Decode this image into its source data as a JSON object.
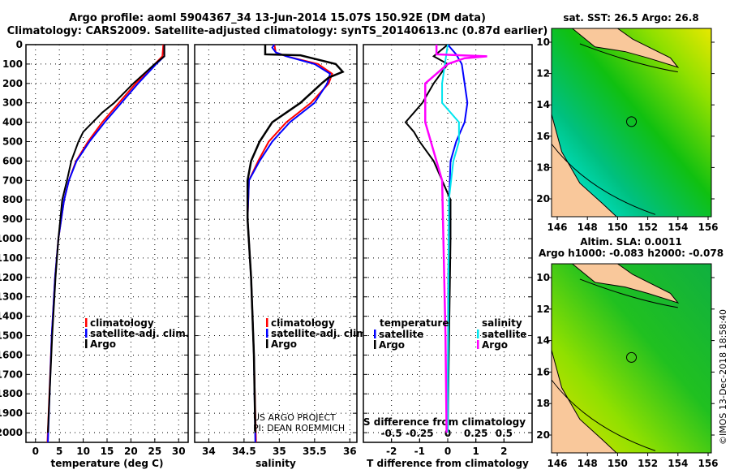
{
  "title_line1": "Argo profile: aoml 5904367_34 13-Jun-2014 15.07S 150.92E (DM data)",
  "title_line2": "Climatology: CARS2009. Satellite-adjusted climatology: synTS_20140613.nc (0.87d earlier)",
  "credit": "US ARGO PROJECT",
  "pi": "PI: DEAN ROEMMICH",
  "timestamp": "©IMOS 13-Dec-2018 18:58:40",
  "colors": {
    "climatology": "#ff0000",
    "satellite": "#0000ff",
    "argo": "#000000",
    "s_satellite": "#00e5ee",
    "s_argo": "#ff00ff"
  },
  "chart_data": [
    {
      "type": "line",
      "name": "temperature-profile",
      "xlabel": "temperature (deg C)",
      "ylabel": "",
      "xlim": [
        -2,
        32
      ],
      "ylim": [
        2050,
        0
      ],
      "xticks": [
        0,
        5,
        10,
        15,
        20,
        25,
        30
      ],
      "yticks": [
        0,
        100,
        200,
        300,
        400,
        500,
        600,
        700,
        800,
        900,
        1000,
        1100,
        1200,
        1300,
        1400,
        1500,
        1600,
        1700,
        1800,
        1900,
        2000
      ],
      "grid": true,
      "legend": {
        "placement": "bottom-center",
        "entries": [
          "climatology",
          "satellite-adj. clim.",
          "Argo"
        ]
      },
      "series": [
        {
          "name": "climatology",
          "color": "#ff0000",
          "depth": [
            0,
            60,
            100,
            200,
            300,
            400,
            500,
            600,
            700,
            800,
            1000,
            1200,
            1500,
            2050
          ],
          "values": [
            26.8,
            26.6,
            25,
            21,
            17.5,
            14,
            11,
            8.5,
            7,
            6,
            4.8,
            4.1,
            3.4,
            2.5
          ]
        },
        {
          "name": "satellite-adj. clim.",
          "color": "#0000ff",
          "depth": [
            0,
            60,
            100,
            200,
            300,
            400,
            500,
            600,
            700,
            800,
            1000,
            1200,
            1500,
            2050
          ],
          "values": [
            27,
            27,
            25.3,
            21.5,
            18,
            14.5,
            11.3,
            8.6,
            7,
            6,
            4.8,
            4.1,
            3.4,
            2.6
          ]
        },
        {
          "name": "Argo",
          "color": "#000000",
          "depth": [
            0,
            60,
            100,
            200,
            300,
            350,
            400,
            450,
            500,
            600,
            700,
            800,
            1000,
            1200,
            1500,
            2000
          ],
          "values": [
            27,
            27,
            25,
            20.5,
            16.5,
            14,
            12,
            10,
            9,
            7.5,
            6.6,
            5.6,
            4.8,
            4.2,
            3.5,
            2.6
          ]
        }
      ]
    },
    {
      "type": "line",
      "name": "salinity-profile",
      "xlabel": "salinity",
      "xlim": [
        33.8,
        36.1
      ],
      "ylim": [
        2050,
        0
      ],
      "xticks": [
        34,
        34.5,
        35,
        35.5,
        36
      ],
      "grid": true,
      "legend": {
        "placement": "bottom-center",
        "entries": [
          "climatology",
          "satellite-adj. clim.",
          "Argo"
        ]
      },
      "series": [
        {
          "name": "climatology",
          "color": "#ff0000",
          "depth": [
            0,
            40,
            60,
            100,
            150,
            200,
            300,
            400,
            500,
            600,
            700,
            900,
            1200,
            1600,
            2050
          ],
          "values": [
            34.93,
            34.95,
            35.1,
            35.55,
            35.75,
            35.7,
            35.45,
            35.1,
            34.85,
            34.7,
            34.57,
            34.55,
            34.6,
            34.64,
            34.67
          ]
        },
        {
          "name": "satellite-adj. clim.",
          "color": "#0000ff",
          "depth": [
            0,
            15,
            40,
            60,
            100,
            150,
            200,
            300,
            400,
            500,
            600,
            700,
            900,
            1200,
            1600,
            2050
          ],
          "values": [
            34.93,
            34.9,
            34.95,
            35.1,
            35.5,
            35.72,
            35.68,
            35.5,
            35.15,
            34.9,
            34.72,
            34.57,
            34.55,
            34.6,
            34.64,
            34.66
          ]
        },
        {
          "name": "Argo",
          "color": "#000000",
          "depth": [
            0,
            50,
            55,
            100,
            140,
            170,
            200,
            300,
            400,
            500,
            600,
            700,
            900,
            1200,
            1600,
            2000
          ],
          "values": [
            34.8,
            34.8,
            35.3,
            35.8,
            35.9,
            35.7,
            35.6,
            35.3,
            34.9,
            34.72,
            34.6,
            34.55,
            34.55,
            34.6,
            34.64,
            34.66
          ]
        }
      ]
    },
    {
      "type": "line",
      "name": "difference-profile",
      "xlabel": "T difference from climatology",
      "x2label": "S difference from climatology",
      "xlim": [
        -3,
        3
      ],
      "x2lim": [
        -0.75,
        0.75
      ],
      "ylim": [
        2050,
        0
      ],
      "xticks": [
        -2,
        -1,
        0,
        1,
        2
      ],
      "x2ticks": [
        -0.5,
        -0.25,
        0,
        0.25,
        0.5
      ],
      "x2ticklabels": [
        "-0.5",
        "-0.25",
        "0",
        "0.25",
        "0.5"
      ],
      "grid": true,
      "legend": {
        "placement": "bottom",
        "temperature_title": "temperature",
        "salinity_title": "salinity",
        "entries": [
          "satellite",
          "Argo",
          "satellite",
          "Argo"
        ]
      },
      "series": [
        {
          "name": "T satellite",
          "axis": "T",
          "color": "#0000ff",
          "depth": [
            0,
            50,
            100,
            200,
            300,
            400,
            500,
            600,
            800,
            1200,
            2000
          ],
          "values": [
            0,
            0.3,
            0.5,
            0.6,
            0.7,
            0.6,
            0.3,
            0.1,
            0.05,
            0.02,
            0
          ]
        },
        {
          "name": "T Argo",
          "axis": "T",
          "color": "#000000",
          "depth": [
            0,
            60,
            100,
            200,
            300,
            400,
            450,
            500,
            600,
            700,
            800,
            1000,
            1500,
            2000
          ],
          "values": [
            0,
            -0.5,
            0,
            -0.5,
            -0.9,
            -1.5,
            -1.2,
            -1,
            -0.5,
            -0.2,
            0.1,
            0.1,
            0.05,
            0
          ]
        },
        {
          "name": "S satellite",
          "axis": "S",
          "color": "#00e5ee",
          "depth": [
            0,
            200,
            300,
            400,
            500,
            600,
            800,
            2000
          ],
          "values": [
            0,
            -0.05,
            -0.05,
            0.1,
            0.1,
            0.05,
            0.01,
            0
          ]
        },
        {
          "name": "S Argo",
          "axis": "S",
          "color": "#ff00ff",
          "depth": [
            0,
            50,
            60,
            70,
            100,
            200,
            300,
            400,
            500,
            600,
            700,
            1500,
            2000
          ],
          "values": [
            -0.1,
            -0.1,
            0.35,
            0.15,
            0,
            -0.2,
            -0.2,
            -0.2,
            -0.15,
            -0.1,
            -0.05,
            -0.02,
            -0.01
          ]
        }
      ]
    },
    {
      "type": "heatmap",
      "name": "sst-map",
      "title": "sat. SST: 26.5 Argo: 26.8",
      "xticks": [
        146,
        148,
        150,
        152,
        154,
        156
      ],
      "yticks": [
        -10,
        -12,
        -14,
        -16,
        -18,
        -20
      ],
      "xlim": [
        145.7,
        156.2
      ],
      "ylim": [
        -21.1,
        -9.3
      ],
      "argo_position": [
        150.92,
        -15.07
      ]
    },
    {
      "type": "heatmap",
      "name": "sla-map",
      "title1": "Altim. SLA: 0.0011",
      "title2": "Argo h1000: -0.083 h2000: -0.078",
      "xticks": [
        146,
        148,
        150,
        152,
        154,
        156
      ],
      "yticks": [
        -10,
        -12,
        -14,
        -16,
        -18,
        -20
      ],
      "xlim": [
        145.7,
        156.2
      ],
      "ylim": [
        -21.1,
        -9.3
      ],
      "argo_position": [
        150.92,
        -15.07
      ]
    }
  ]
}
